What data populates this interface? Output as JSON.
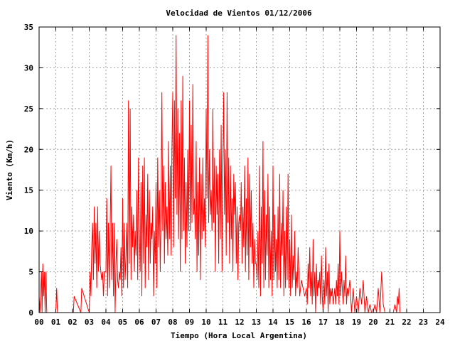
{
  "chart_data": {
    "type": "line",
    "title": "Velocidad de Vientos 01/12/2006",
    "xlabel": "Tiempo (Hora Local Argentina)",
    "ylabel": "Viento (Km/h)",
    "xlim": [
      0,
      24
    ],
    "ylim": [
      0,
      35
    ],
    "xticks": [
      "00",
      "01",
      "02",
      "03",
      "04",
      "05",
      "06",
      "07",
      "08",
      "09",
      "10",
      "11",
      "12",
      "13",
      "14",
      "15",
      "16",
      "17",
      "18",
      "19",
      "20",
      "21",
      "22",
      "23",
      "24"
    ],
    "yticks": [
      "0",
      "5",
      "10",
      "15",
      "20",
      "25",
      "30",
      "35"
    ],
    "grid": true,
    "legend": "none",
    "series": [
      {
        "color": "#ff0000",
        "x": [
          0.0,
          0.05,
          0.1,
          0.14,
          0.18,
          0.22,
          0.27,
          0.31,
          0.36,
          0.41,
          0.46,
          0.55,
          0.7,
          1.0,
          1.05,
          1.1,
          1.4,
          2.05,
          2.1,
          2.5,
          2.55,
          3.0,
          3.05,
          3.1,
          3.15,
          3.2,
          3.25,
          3.3,
          3.35,
          3.4,
          3.45,
          3.5,
          3.55,
          3.6,
          3.65,
          3.7,
          3.75,
          3.8,
          3.85,
          3.9,
          3.95,
          4.0,
          4.05,
          4.1,
          4.15,
          4.2,
          4.25,
          4.3,
          4.35,
          4.4,
          4.45,
          4.5,
          4.55,
          4.6,
          4.65,
          4.7,
          4.75,
          4.8,
          4.85,
          4.9,
          4.95,
          5.0,
          5.05,
          5.1,
          5.15,
          5.2,
          5.25,
          5.3,
          5.35,
          5.4,
          5.45,
          5.5,
          5.55,
          5.6,
          5.65,
          5.7,
          5.75,
          5.8,
          5.85,
          5.9,
          5.95,
          6.0,
          6.05,
          6.1,
          6.15,
          6.2,
          6.25,
          6.3,
          6.35,
          6.4,
          6.45,
          6.5,
          6.55,
          6.6,
          6.65,
          6.7,
          6.75,
          6.8,
          6.85,
          6.9,
          6.95,
          7.0,
          7.05,
          7.1,
          7.15,
          7.2,
          7.25,
          7.3,
          7.35,
          7.4,
          7.45,
          7.5,
          7.55,
          7.6,
          7.65,
          7.7,
          7.75,
          7.8,
          7.85,
          7.9,
          7.95,
          8.0,
          8.05,
          8.1,
          8.15,
          8.2,
          8.25,
          8.3,
          8.35,
          8.4,
          8.45,
          8.5,
          8.55,
          8.6,
          8.65,
          8.7,
          8.75,
          8.8,
          8.85,
          8.9,
          8.95,
          9.0,
          9.05,
          9.1,
          9.15,
          9.2,
          9.25,
          9.3,
          9.35,
          9.4,
          9.45,
          9.5,
          9.55,
          9.6,
          9.65,
          9.7,
          9.75,
          9.8,
          9.85,
          9.9,
          9.95,
          10.0,
          10.05,
          10.1,
          10.15,
          10.2,
          10.25,
          10.3,
          10.35,
          10.4,
          10.45,
          10.5,
          10.55,
          10.6,
          10.65,
          10.7,
          10.75,
          10.8,
          10.85,
          10.9,
          10.95,
          11.0,
          11.05,
          11.1,
          11.15,
          11.2,
          11.25,
          11.3,
          11.35,
          11.4,
          11.45,
          11.5,
          11.55,
          11.6,
          11.65,
          11.7,
          11.75,
          11.8,
          11.85,
          11.9,
          11.95,
          12.0,
          12.05,
          12.1,
          12.15,
          12.2,
          12.25,
          12.3,
          12.35,
          12.4,
          12.45,
          12.5,
          12.55,
          12.6,
          12.65,
          12.7,
          12.75,
          12.8,
          12.85,
          12.9,
          12.95,
          13.0,
          13.05,
          13.1,
          13.15,
          13.2,
          13.25,
          13.3,
          13.35,
          13.4,
          13.45,
          13.5,
          13.55,
          13.6,
          13.65,
          13.7,
          13.75,
          13.8,
          13.85,
          13.9,
          13.95,
          14.0,
          14.05,
          14.1,
          14.15,
          14.2,
          14.25,
          14.3,
          14.35,
          14.4,
          14.45,
          14.5,
          14.55,
          14.6,
          14.65,
          14.7,
          14.75,
          14.8,
          14.85,
          14.9,
          14.95,
          15.0,
          15.05,
          15.1,
          15.15,
          15.2,
          15.25,
          15.3,
          15.35,
          15.4,
          15.45,
          15.5,
          15.6,
          15.7,
          15.8,
          15.9,
          16.0,
          16.05,
          16.1,
          16.15,
          16.2,
          16.25,
          16.3,
          16.35,
          16.4,
          16.45,
          16.5,
          16.55,
          16.6,
          16.65,
          16.7,
          16.75,
          16.8,
          16.85,
          16.9,
          16.95,
          17.0,
          17.05,
          17.1,
          17.15,
          17.2,
          17.25,
          17.3,
          17.35,
          17.4,
          17.45,
          17.5,
          17.55,
          17.6,
          17.65,
          17.7,
          17.75,
          17.8,
          17.85,
          17.9,
          17.95,
          18.0,
          18.05,
          18.1,
          18.15,
          18.2,
          18.25,
          18.3,
          18.35,
          18.4,
          18.45,
          18.5,
          18.6,
          18.7,
          18.8,
          18.9,
          19.0,
          19.1,
          19.2,
          19.3,
          19.4,
          19.5,
          19.6,
          19.7,
          19.8,
          19.9,
          20.0,
          20.1,
          20.2,
          20.3,
          20.4,
          20.5,
          20.6,
          20.7,
          20.8,
          20.9,
          21.0,
          21.1,
          21.2,
          21.3,
          21.4,
          21.45,
          21.5,
          21.55,
          21.6,
          21.7,
          21.8,
          21.9,
          22.0,
          22.2,
          22.4,
          22.6,
          22.8,
          23.0,
          23.2,
          23.4,
          23.6,
          23.8,
          24.0
        ],
        "values": [
          2,
          0,
          3,
          5,
          0,
          6,
          2,
          5,
          0,
          5,
          0,
          0,
          0,
          0,
          3,
          0,
          0,
          0,
          2,
          0,
          3,
          0,
          5,
          2,
          8,
          11,
          4,
          13,
          6,
          11,
          3,
          13,
          5,
          10,
          6,
          5,
          4,
          5,
          2,
          5,
          5,
          5,
          14,
          2,
          11,
          3,
          10,
          18,
          4,
          11,
          2,
          11,
          0,
          6,
          9,
          4,
          3,
          5,
          4,
          8,
          2,
          14,
          3,
          11,
          4,
          7,
          11,
          3,
          26,
          6,
          25,
          4,
          13,
          8,
          12,
          5,
          10,
          7,
          15,
          4,
          19,
          10,
          5,
          16,
          2,
          18,
          6,
          19,
          3,
          12,
          8,
          17,
          4,
          15,
          6,
          11,
          9,
          13,
          2,
          10,
          6,
          16,
          3,
          19,
          8,
          15,
          5,
          12,
          27,
          10,
          18,
          6,
          16,
          9,
          13,
          7,
          21,
          9,
          18,
          7,
          20,
          27,
          8,
          26,
          14,
          34,
          12,
          25,
          9,
          22,
          5,
          26,
          9,
          29,
          10,
          19,
          6,
          16,
          8,
          20,
          10,
          26,
          10,
          23,
          11,
          28,
          12,
          14,
          9,
          21,
          5,
          16,
          7,
          19,
          4,
          17,
          9,
          19,
          10,
          14,
          8,
          25,
          14,
          34,
          11,
          20,
          12,
          15,
          10,
          25,
          11,
          19,
          5,
          18,
          12,
          17,
          6,
          20,
          9,
          23,
          5,
          18,
          27,
          12,
          20,
          7,
          27,
          11,
          19,
          6,
          18,
          9,
          14,
          5,
          17,
          12,
          16,
          6,
          13,
          4,
          11,
          12,
          10,
          16,
          6,
          13,
          8,
          18,
          5,
          14,
          7,
          19,
          4,
          17,
          8,
          15,
          6,
          11,
          3,
          9,
          6,
          6,
          4,
          10,
          3,
          18,
          2,
          13,
          6,
          21,
          3,
          15,
          4,
          12,
          7,
          17,
          3,
          13,
          4,
          10,
          2,
          18,
          4,
          12,
          5,
          9,
          3,
          13,
          4,
          17,
          3,
          11,
          7,
          15,
          2,
          10,
          3,
          13,
          4,
          17,
          3,
          9,
          2,
          12,
          3,
          7,
          4,
          10,
          2,
          5,
          3,
          8,
          2,
          4,
          3,
          2,
          3,
          1,
          6,
          3,
          8,
          2,
          5,
          1,
          9,
          2,
          5,
          0,
          6,
          2,
          4,
          3,
          5,
          1,
          7,
          2,
          0,
          4,
          1,
          8,
          2,
          5,
          0,
          6,
          1,
          3,
          2,
          3,
          1,
          2,
          3,
          1,
          4,
          2,
          6,
          1,
          10,
          2,
          5,
          3,
          1,
          4,
          2,
          7,
          1,
          3,
          2,
          4,
          0,
          3,
          0,
          2,
          0,
          3,
          1,
          4,
          0,
          2,
          0,
          1,
          0,
          0,
          1,
          0,
          3,
          0,
          5,
          1,
          0,
          0,
          0,
          0,
          0,
          0,
          1,
          0,
          2,
          1,
          3,
          0,
          0,
          0,
          0,
          0,
          0,
          0,
          0,
          0,
          0,
          0,
          0,
          0,
          0,
          0
        ]
      }
    ]
  }
}
